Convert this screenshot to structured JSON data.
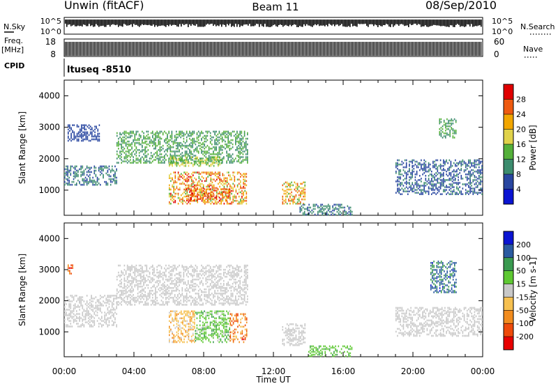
{
  "header": {
    "station": "Unwin (fitACF)",
    "beam": "Beam 11",
    "date": "08/Sep/2010"
  },
  "side_labels": {
    "nsky": "N.Sky",
    "freq_top": "Freq.",
    "freq_unit": "[MHz]",
    "cpid": "CPID",
    "nsearch": "N.Search",
    "nave": "Nave",
    "cpid_value": "ltuseq -8510"
  },
  "noise_axis": {
    "left_ticks": [
      "10^5",
      "10^0"
    ],
    "right_ticks": [
      "10^5",
      "10^0"
    ]
  },
  "freq_axis": {
    "left_ticks": [
      "18",
      "8"
    ],
    "right_ticks": [
      "60",
      "0"
    ]
  },
  "colors": {
    "power": [
      "#0a14d2",
      "#2846a0",
      "#3c8c6e",
      "#54b03a",
      "#e0d24a",
      "#f2a600",
      "#ee5a10",
      "#e00000"
    ],
    "velocity": [
      "#e80000",
      "#ee4a0a",
      "#f28c1e",
      "#f6c050",
      "#c8c8c8",
      "#5ec832",
      "#3a9a50",
      "#2a5aa0",
      "#0a14d2"
    ]
  },
  "chart_data": [
    {
      "type": "heatmap",
      "name": "power",
      "xlabel": "",
      "ylabel": "Slant Range [km]",
      "xlim": [
        0,
        24
      ],
      "ylim": [
        200,
        4500
      ],
      "yticks": [
        "1000",
        "2000",
        "3000",
        "4000"
      ],
      "colorbar": {
        "label": "Power [dB]",
        "ticks": [
          "4",
          "8",
          "12",
          "16",
          "20",
          "24",
          "28"
        ],
        "range": [
          0,
          32
        ]
      },
      "regions": [
        {
          "t": [
            0.0,
            3.0
          ],
          "r": [
            1200,
            1800
          ],
          "values": [
            6,
            10
          ]
        },
        {
          "t": [
            0.2,
            2.0
          ],
          "r": [
            2600,
            3100
          ],
          "values": [
            4,
            8
          ]
        },
        {
          "t": [
            3.0,
            10.5
          ],
          "r": [
            1900,
            2900
          ],
          "values": [
            8,
            16
          ]
        },
        {
          "t": [
            6.0,
            9.0
          ],
          "r": [
            1800,
            2100
          ],
          "values": [
            12,
            20
          ]
        },
        {
          "t": [
            6.0,
            10.5
          ],
          "r": [
            600,
            1600
          ],
          "values": [
            14,
            30
          ]
        },
        {
          "t": [
            7.0,
            9.5
          ],
          "r": [
            700,
            1100
          ],
          "values": [
            22,
            30
          ]
        },
        {
          "t": [
            12.5,
            13.8
          ],
          "r": [
            600,
            1300
          ],
          "values": [
            14,
            28
          ]
        },
        {
          "t": [
            13.5,
            16.5
          ],
          "r": [
            250,
            600
          ],
          "values": [
            6,
            12
          ]
        },
        {
          "t": [
            19.0,
            24.0
          ],
          "r": [
            900,
            2000
          ],
          "values": [
            4,
            10
          ]
        },
        {
          "t": [
            21.5,
            22.5
          ],
          "r": [
            2700,
            3300
          ],
          "values": [
            8,
            16
          ]
        }
      ]
    },
    {
      "type": "heatmap",
      "name": "velocity",
      "xlabel": "Time UT",
      "ylabel": "Slant Range [km]",
      "xlim": [
        0,
        24
      ],
      "ylim": [
        200,
        4500
      ],
      "xticks": [
        "00:00",
        "04:00",
        "08:00",
        "12:00",
        "16:00",
        "20:00",
        "00:00"
      ],
      "yticks": [
        "1000",
        "2000",
        "3000",
        "4000"
      ],
      "colorbar": {
        "label": "Velocity [m s-1]",
        "ticks": [
          "200",
          "100",
          "50",
          "15",
          "-15",
          "-50",
          "-100",
          "-200"
        ],
        "range": [
          -250,
          250
        ]
      },
      "regions": [
        {
          "t": [
            0.0,
            3.0
          ],
          "r": [
            1200,
            2200
          ],
          "values": [
            -15,
            15
          ]
        },
        {
          "t": [
            0.2,
            0.6
          ],
          "r": [
            2900,
            3200
          ],
          "values": [
            -200,
            -100
          ]
        },
        {
          "t": [
            3.0,
            10.5
          ],
          "r": [
            1900,
            3200
          ],
          "values": [
            -20,
            15
          ]
        },
        {
          "t": [
            6.0,
            7.5
          ],
          "r": [
            700,
            1700
          ],
          "values": [
            -100,
            -15
          ]
        },
        {
          "t": [
            7.5,
            9.5
          ],
          "r": [
            700,
            1700
          ],
          "values": [
            15,
            100
          ]
        },
        {
          "t": [
            9.5,
            10.5
          ],
          "r": [
            700,
            1600
          ],
          "values": [
            -200,
            -50
          ]
        },
        {
          "t": [
            12.5,
            13.8
          ],
          "r": [
            600,
            1300
          ],
          "values": [
            -15,
            15
          ]
        },
        {
          "t": [
            14.0,
            16.5
          ],
          "r": [
            250,
            600
          ],
          "values": [
            30,
            90
          ]
        },
        {
          "t": [
            19.0,
            24.0
          ],
          "r": [
            900,
            1800
          ],
          "values": [
            -15,
            15
          ]
        },
        {
          "t": [
            21.0,
            22.5
          ],
          "r": [
            2300,
            3300
          ],
          "values": [
            100,
            200
          ]
        }
      ]
    }
  ]
}
